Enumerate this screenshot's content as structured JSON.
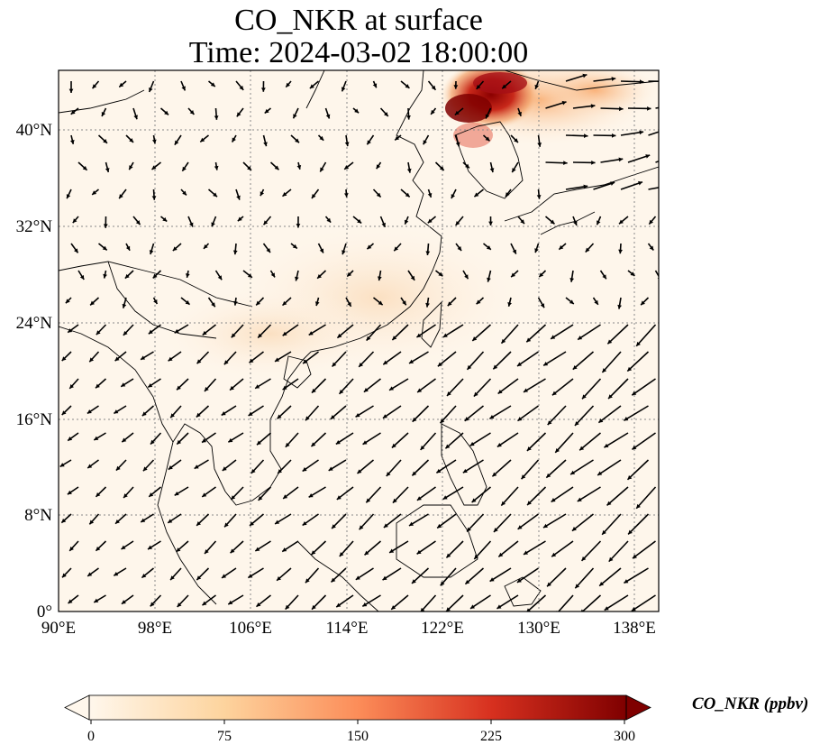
{
  "title": {
    "line1": "CO_NKR at surface",
    "line2": "Time: 2024-03-02 18:00:00"
  },
  "map": {
    "variable": "CO_NKR",
    "level": "surface",
    "colormap": "OrRd",
    "lon_range": [
      90,
      140
    ],
    "lat_range": [
      0,
      45
    ],
    "gridlines": "dotted",
    "lon_ticks": [
      "90°E",
      "98°E",
      "106°E",
      "114°E",
      "122°E",
      "130°E",
      "138°E"
    ],
    "lat_ticks": [
      "0°",
      "8°N",
      "16°N",
      "24°N",
      "32°N",
      "40°N"
    ],
    "overlay": "wind vectors"
  },
  "colorbar": {
    "label": "CO_NKR (ppbv)",
    "ticks": [
      "0",
      "75",
      "150",
      "225",
      "300"
    ],
    "min": 0,
    "max": 300,
    "extend": "both",
    "colors": [
      "#fff7ec",
      "#fdd49e",
      "#fc8d59",
      "#d7301f",
      "#7f0000"
    ]
  }
}
